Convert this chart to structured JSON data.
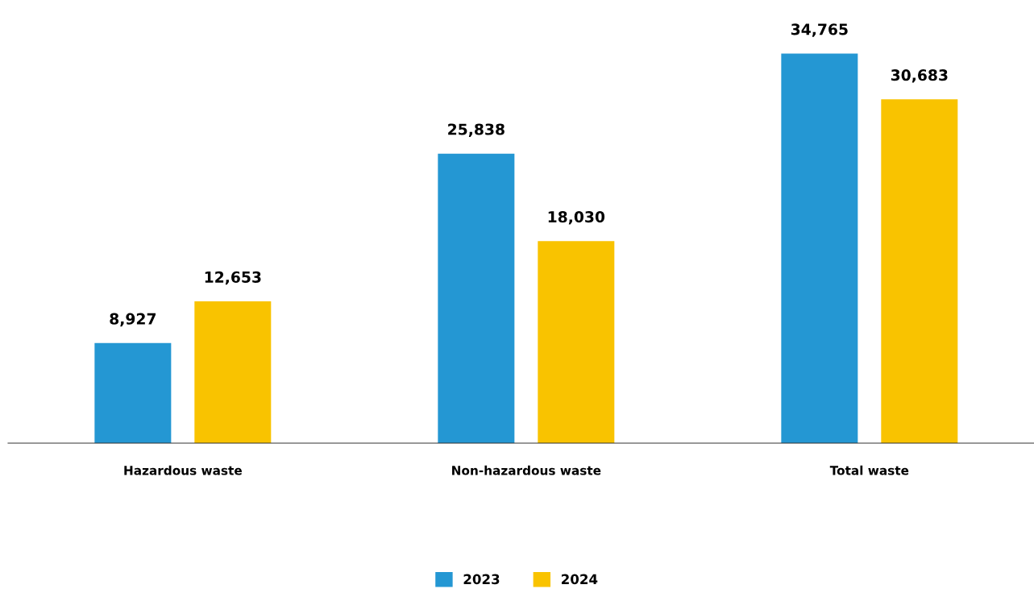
{
  "chart_data": {
    "type": "bar",
    "categories": [
      "Hazardous waste",
      "Non-hazardous waste",
      "Total waste"
    ],
    "series": [
      {
        "name": "2023",
        "color": "#2497d3",
        "values": [
          8927,
          25838,
          34765
        ],
        "value_labels": [
          "8,927",
          "25,838",
          "34,765"
        ]
      },
      {
        "name": "2024",
        "color": "#f9c300",
        "values": [
          12653,
          18030,
          30683
        ],
        "value_labels": [
          "12,653",
          "18,030",
          "30,683"
        ]
      }
    ],
    "legend": "bottom",
    "tick_labels": "x"
  }
}
